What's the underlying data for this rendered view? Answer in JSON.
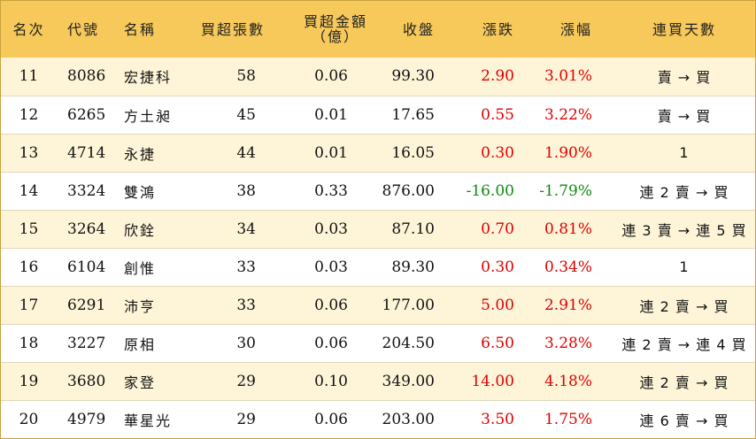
{
  "colors": {
    "header_bg": "#f7c85a",
    "odd_row_bg": "#fef5d9",
    "up": "#e00000",
    "down": "#108a10",
    "border": "#c9a23c"
  },
  "headers": {
    "rank": "名次",
    "code": "代號",
    "name": "名稱",
    "volume": "買超張數",
    "amount_line1": "買超金額",
    "amount_line2": "（億）",
    "close": "收盤",
    "change": "漲跌",
    "pct": "漲幅",
    "days": "連買天數"
  },
  "rows": [
    {
      "rank": "11",
      "code": "8086",
      "name": "宏捷科",
      "volume": "58",
      "amount": "0.06",
      "close": "99.30",
      "change": "2.90",
      "pct": "3.01%",
      "days": "賣 → 買",
      "dir": "up"
    },
    {
      "rank": "12",
      "code": "6265",
      "name": "方土昶",
      "volume": "45",
      "amount": "0.01",
      "close": "17.65",
      "change": "0.55",
      "pct": "3.22%",
      "days": "賣 → 買",
      "dir": "up"
    },
    {
      "rank": "13",
      "code": "4714",
      "name": "永捷",
      "volume": "44",
      "amount": "0.01",
      "close": "16.05",
      "change": "0.30",
      "pct": "1.90%",
      "days": "1",
      "dir": "up"
    },
    {
      "rank": "14",
      "code": "3324",
      "name": "雙鴻",
      "volume": "38",
      "amount": "0.33",
      "close": "876.00",
      "change": "-16.00",
      "pct": "-1.79%",
      "days": "連 2 賣 → 買",
      "dir": "down"
    },
    {
      "rank": "15",
      "code": "3264",
      "name": "欣銓",
      "volume": "34",
      "amount": "0.03",
      "close": "87.10",
      "change": "0.70",
      "pct": "0.81%",
      "days": "連 3 賣 → 連 5 買",
      "dir": "up"
    },
    {
      "rank": "16",
      "code": "6104",
      "name": "創惟",
      "volume": "33",
      "amount": "0.03",
      "close": "89.30",
      "change": "0.30",
      "pct": "0.34%",
      "days": "1",
      "dir": "up"
    },
    {
      "rank": "17",
      "code": "6291",
      "name": "沛亨",
      "volume": "33",
      "amount": "0.06",
      "close": "177.00",
      "change": "5.00",
      "pct": "2.91%",
      "days": "連 2 賣 → 買",
      "dir": "up"
    },
    {
      "rank": "18",
      "code": "3227",
      "name": "原相",
      "volume": "30",
      "amount": "0.06",
      "close": "204.50",
      "change": "6.50",
      "pct": "3.28%",
      "days": "連 2 賣 → 連 4 買",
      "dir": "up"
    },
    {
      "rank": "19",
      "code": "3680",
      "name": "家登",
      "volume": "29",
      "amount": "0.10",
      "close": "349.00",
      "change": "14.00",
      "pct": "4.18%",
      "days": "連 2 賣 → 買",
      "dir": "up"
    },
    {
      "rank": "20",
      "code": "4979",
      "name": "華星光",
      "volume": "29",
      "amount": "0.06",
      "close": "203.00",
      "change": "3.50",
      "pct": "1.75%",
      "days": "連 6 賣 → 買",
      "dir": "up"
    }
  ]
}
